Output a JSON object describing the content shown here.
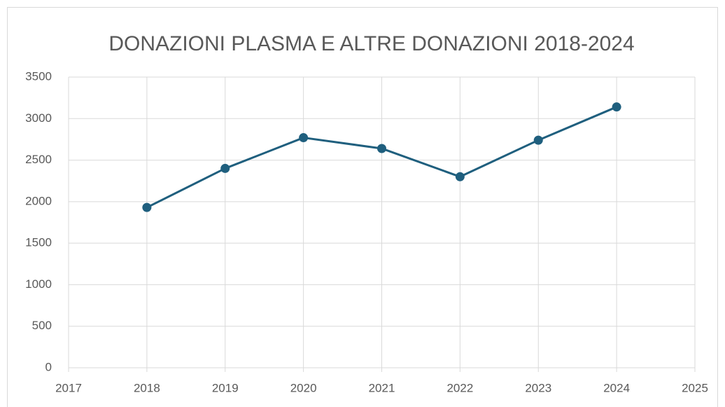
{
  "chart_data": {
    "type": "line",
    "title": "DONAZIONI PLASMA E ALTRE DONAZIONI 2018-2024",
    "x": [
      2018,
      2019,
      2020,
      2021,
      2022,
      2023,
      2024
    ],
    "series": [
      {
        "color": "#1f5f7e",
        "values": [
          1930,
          2400,
          2770,
          2640,
          2300,
          2740,
          3140
        ]
      }
    ],
    "xlim": [
      2017,
      2025
    ],
    "xticks": [
      2017,
      2018,
      2019,
      2020,
      2021,
      2022,
      2023,
      2024,
      2025
    ],
    "ylim": [
      0,
      3500
    ],
    "yticks": [
      0,
      500,
      1000,
      1500,
      2000,
      2500,
      3000,
      3500
    ],
    "grid": true
  }
}
